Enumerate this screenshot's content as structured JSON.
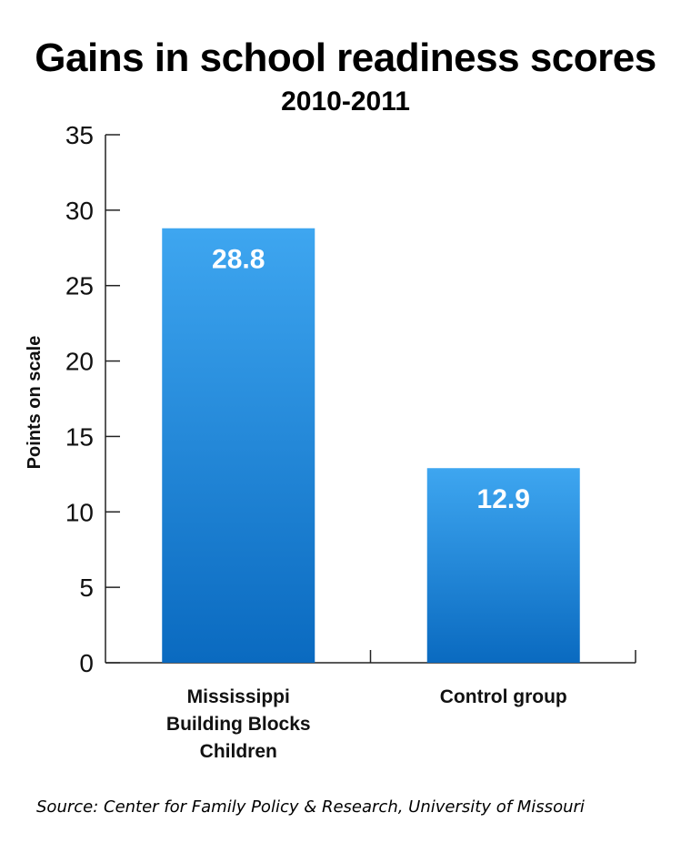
{
  "chart_data": {
    "type": "bar",
    "title": "Gains in school readiness scores",
    "subtitle": "2010-2011",
    "xlabel": "",
    "ylabel": "Points on scale",
    "categories": [
      [
        "Mississippi",
        "Building Blocks",
        "Children"
      ],
      [
        "Control group"
      ]
    ],
    "values": [
      28.8,
      12.9
    ],
    "data_labels": [
      "28.8",
      "12.9"
    ],
    "ylim": [
      0,
      35
    ],
    "yticks": [
      0,
      5,
      10,
      15,
      20,
      25,
      30,
      35
    ],
    "grid": false,
    "bar_color_top": "#3ea6f0",
    "bar_color_bottom": "#0a6ac0",
    "data_label_color": "#ffffff"
  },
  "source": "Source: Center for Family Policy & Research, University of Missouri"
}
